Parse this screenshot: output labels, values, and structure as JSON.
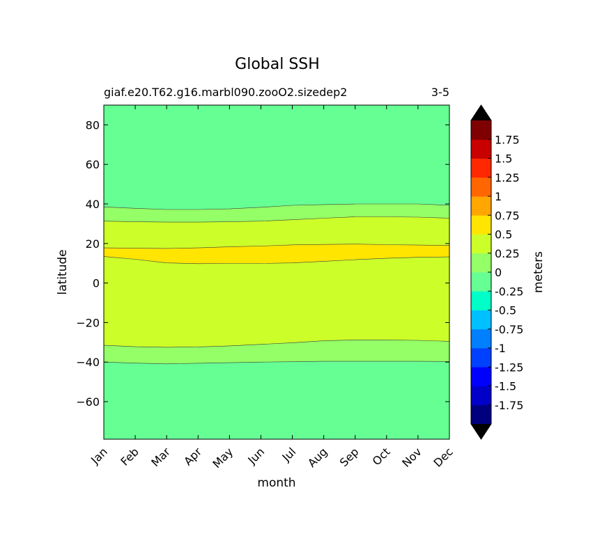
{
  "title": "Global SSH",
  "subtitle_left": "giaf.e20.T62.g16.marbl090.zooO2.sizedep2",
  "subtitle_right": "3-5",
  "chart_data": {
    "type": "heatmap",
    "title": "Global SSH",
    "xlabel": "month",
    "ylabel": "latitude",
    "x_categories": [
      "Jan",
      "Feb",
      "Mar",
      "Apr",
      "May",
      "Jun",
      "Jul",
      "Aug",
      "Sep",
      "Oct",
      "Nov",
      "Dec"
    ],
    "ylim": [
      -79,
      90
    ],
    "yticks": [
      80,
      60,
      40,
      20,
      0,
      -20,
      -40,
      -60
    ],
    "grid": false,
    "contour_boundaries": [
      {
        "name": "b1",
        "lats": [
          38.5,
          37.8,
          37.2,
          37.2,
          37.5,
          38.3,
          39.3,
          39.7,
          40.0,
          40.0,
          40.0,
          39.3
        ]
      },
      {
        "name": "b2",
        "lats": [
          31.3,
          31.0,
          30.8,
          30.8,
          31.0,
          31.3,
          32.0,
          32.8,
          33.5,
          33.5,
          33.3,
          32.8
        ]
      },
      {
        "name": "b3",
        "lats": [
          17.8,
          17.6,
          17.5,
          17.8,
          18.3,
          18.7,
          19.3,
          19.5,
          19.7,
          19.4,
          19.2,
          19.0
        ]
      },
      {
        "name": "b4",
        "lats": [
          13.4,
          12.0,
          10.2,
          9.8,
          9.9,
          9.9,
          10.2,
          11.0,
          11.8,
          12.5,
          13.0,
          13.2
        ]
      },
      {
        "name": "b5",
        "lats": [
          -31.5,
          -32.2,
          -32.5,
          -32.3,
          -31.8,
          -31.0,
          -30.2,
          -29.2,
          -28.8,
          -28.8,
          -29.0,
          -29.5
        ]
      },
      {
        "name": "b6",
        "lats": [
          -40.0,
          -40.5,
          -40.9,
          -40.6,
          -40.3,
          -40.0,
          -39.8,
          -39.6,
          -39.6,
          -39.6,
          -39.6,
          -39.7
        ]
      }
    ],
    "bands": [
      {
        "top": "max",
        "bottom": "b1",
        "value_range": [
          -0.25,
          0
        ],
        "color": "#66ff94"
      },
      {
        "top": "b1",
        "bottom": "b2",
        "value_range": [
          0,
          0.25
        ],
        "color": "#94ff66"
      },
      {
        "top": "b2",
        "bottom": "b3",
        "value_range": [
          0.25,
          0.5
        ],
        "color": "#ccff29"
      },
      {
        "top": "b3",
        "bottom": "b4",
        "value_range": [
          0.5,
          0.75
        ],
        "color": "#ffe500"
      },
      {
        "top": "b4",
        "bottom": "b5",
        "value_range": [
          0.25,
          0.5
        ],
        "color": "#ccff29"
      },
      {
        "top": "b5",
        "bottom": "b6",
        "value_range": [
          0,
          0.25
        ],
        "color": "#94ff66"
      },
      {
        "top": "b6",
        "bottom": "min",
        "value_range": [
          -0.25,
          0
        ],
        "color": "#66ff94"
      }
    ],
    "colorbar": {
      "label": "meters",
      "levels": [
        -2,
        -1.75,
        -1.5,
        -1.25,
        -1,
        -0.75,
        -0.5,
        -0.25,
        0,
        0.25,
        0.5,
        0.75,
        1,
        1.25,
        1.5,
        1.75,
        2
      ],
      "tick_labels": [
        "-1.75",
        "-1.5",
        "-1.25",
        "-1",
        "-0.75",
        "-0.5",
        "-0.25",
        "0",
        "0.25",
        "0.5",
        "0.75",
        "1",
        "1.25",
        "1.5",
        "1.75"
      ],
      "colors": [
        "#00007f",
        "#0000c8",
        "#0000ff",
        "#0040ff",
        "#0080ff",
        "#00c0ff",
        "#00ffc8",
        "#66ff94",
        "#94ff66",
        "#ccff29",
        "#ffe500",
        "#ffa600",
        "#ff6600",
        "#ff2800",
        "#c80000",
        "#7f0000"
      ],
      "extend_color_low": "#000000",
      "extend_color_high": "#000000"
    }
  }
}
